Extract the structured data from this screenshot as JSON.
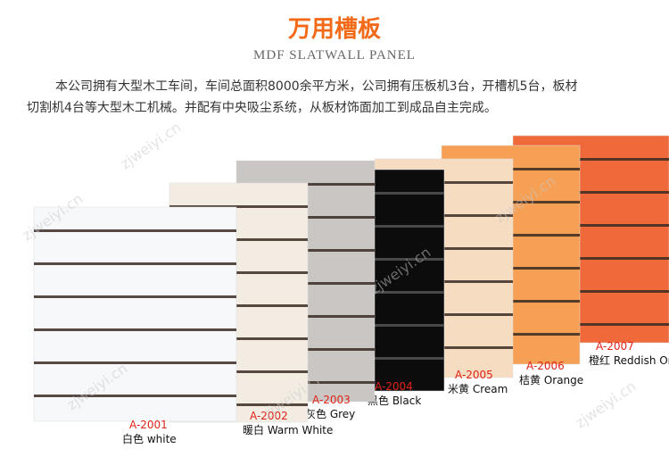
{
  "header": {
    "title": "万用槽板",
    "subtitle": "MDF SLATWALL PANEL"
  },
  "description": [
    "本公司拥有大型木工车间，车间总面积8000余平方米，公司拥有压板机3台，开槽机5台，板材",
    "切割机4台等大型木工机械。并配有中央吸尘系统，从板材饰面加工到成品自主完成。"
  ],
  "watermark": "zjweiyi.cn",
  "panels": [
    {
      "code": "A-2007",
      "name": "橙红 Reddish Orange",
      "color": "#f0693a"
    },
    {
      "code": "A-2006",
      "name": "桔黄 Orange",
      "color": "#f6a055"
    },
    {
      "code": "A-2005",
      "name": "米黄 Cream",
      "color": "#f6dcc0"
    },
    {
      "code": "A-2004",
      "name": "黑色 Black",
      "color": "#0c0c0c"
    },
    {
      "code": "A-2003",
      "name": "灰色 Grey",
      "color": "#c9c6c3"
    },
    {
      "code": "A-2002",
      "name": "暖白 Warm White",
      "color": "#f3ece3"
    },
    {
      "code": "A-2001",
      "name": "白色 white",
      "color": "#f7f8fa"
    }
  ]
}
